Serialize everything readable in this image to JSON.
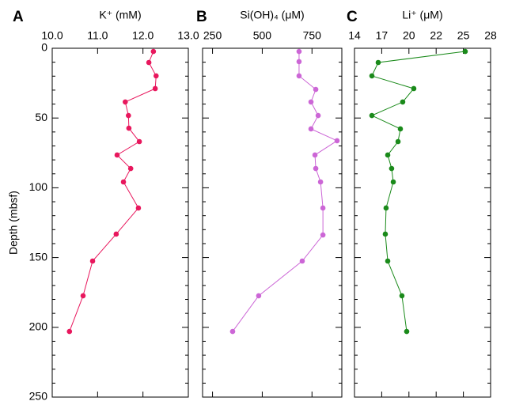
{
  "chart_data": [
    {
      "type": "line",
      "panel_label": "A",
      "title": "K⁺ (mM)",
      "ylabel": "Depth (mbsf)",
      "color": "#e8175d",
      "x": [
        12.23,
        12.13,
        12.29,
        12.27,
        11.61,
        11.68,
        11.69,
        11.92,
        11.43,
        11.73,
        11.57,
        11.9,
        11.41,
        10.89,
        10.68,
        10.38
      ],
      "y": [
        2.3,
        10.2,
        19.8,
        28.9,
        38.5,
        48.2,
        57.3,
        66.9,
        76.5,
        86.2,
        95.8,
        114.5,
        133.2,
        152.5,
        177.4,
        203
      ],
      "xlim": [
        10,
        13
      ],
      "xticks": [
        {
          "value": 10,
          "label": "10.0"
        },
        {
          "value": 11,
          "label": "11.0"
        },
        {
          "value": 12,
          "label": "12.0"
        },
        {
          "value": 13,
          "label": "13.0"
        }
      ],
      "ylim": [
        0,
        250
      ],
      "yticks": [
        0,
        50,
        100,
        150,
        200,
        250
      ]
    },
    {
      "type": "line",
      "panel_label": "B",
      "title": "Si(OH)₄ (μM)",
      "color": "#cc66d6",
      "x": [
        685,
        685,
        685,
        769,
        745,
        781,
        745,
        876,
        765,
        769,
        793,
        805,
        805,
        701,
        482,
        351
      ],
      "y": [
        2.3,
        9.6,
        19.8,
        29.5,
        38.5,
        48.2,
        57.8,
        66.3,
        76.5,
        86.2,
        95.8,
        114.5,
        133.8,
        152.5,
        177.4,
        203
      ],
      "xlim": [
        200,
        900
      ],
      "xticks": [
        250,
        500,
        750
      ]
    },
    {
      "type": "line",
      "panel_label": "C",
      "title": "Li⁺ (μM)",
      "color": "#1a8a1a",
      "x": [
        25.39,
        16.44,
        15.79,
        20.1,
        18.96,
        15.79,
        18.72,
        18.48,
        17.42,
        17.82,
        17.99,
        17.25,
        17.17,
        17.42,
        18.88,
        19.37
      ],
      "y": [
        2.3,
        10.2,
        19.8,
        28.9,
        38.5,
        48.2,
        57.8,
        66.9,
        76.5,
        86.2,
        95.8,
        114.5,
        133.2,
        152.5,
        177.4,
        203
      ],
      "xlim": [
        14,
        28
      ],
      "xticks": [
        14,
        {
          "value": 16.8,
          "label": "17"
        },
        {
          "value": 19.6,
          "label": "20"
        },
        {
          "value": 22.4,
          "label": "22"
        },
        {
          "value": 25.2,
          "label": "25"
        },
        28
      ]
    }
  ]
}
